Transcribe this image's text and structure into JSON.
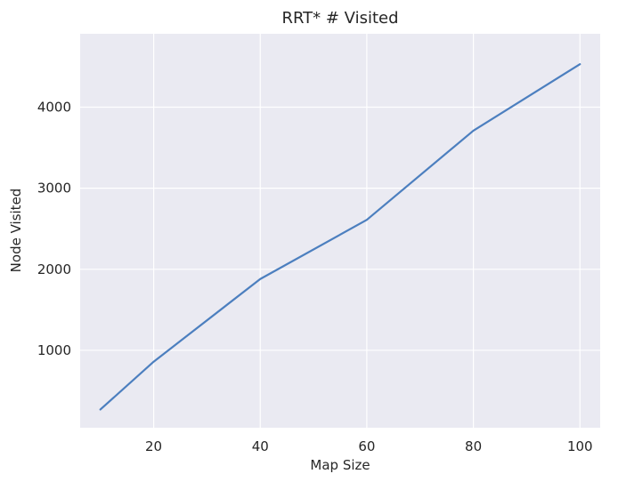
{
  "chart_data": {
    "type": "line",
    "title": "RRT* # Visited",
    "xlabel": "Map Size",
    "ylabel": "Node Visited",
    "grid": true,
    "xlim": [
      6.2,
      103.8
    ],
    "ylim": [
      45,
      4905
    ],
    "x_ticks": [
      20,
      40,
      60,
      80,
      100
    ],
    "y_ticks": [
      1000,
      2000,
      3000,
      4000
    ],
    "series": [
      {
        "name": "visited",
        "color": "#4c7fbf",
        "x": [
          10,
          20,
          40,
          60,
          80,
          100
        ],
        "y": [
          270,
          860,
          1880,
          2610,
          3710,
          4530
        ]
      }
    ]
  }
}
